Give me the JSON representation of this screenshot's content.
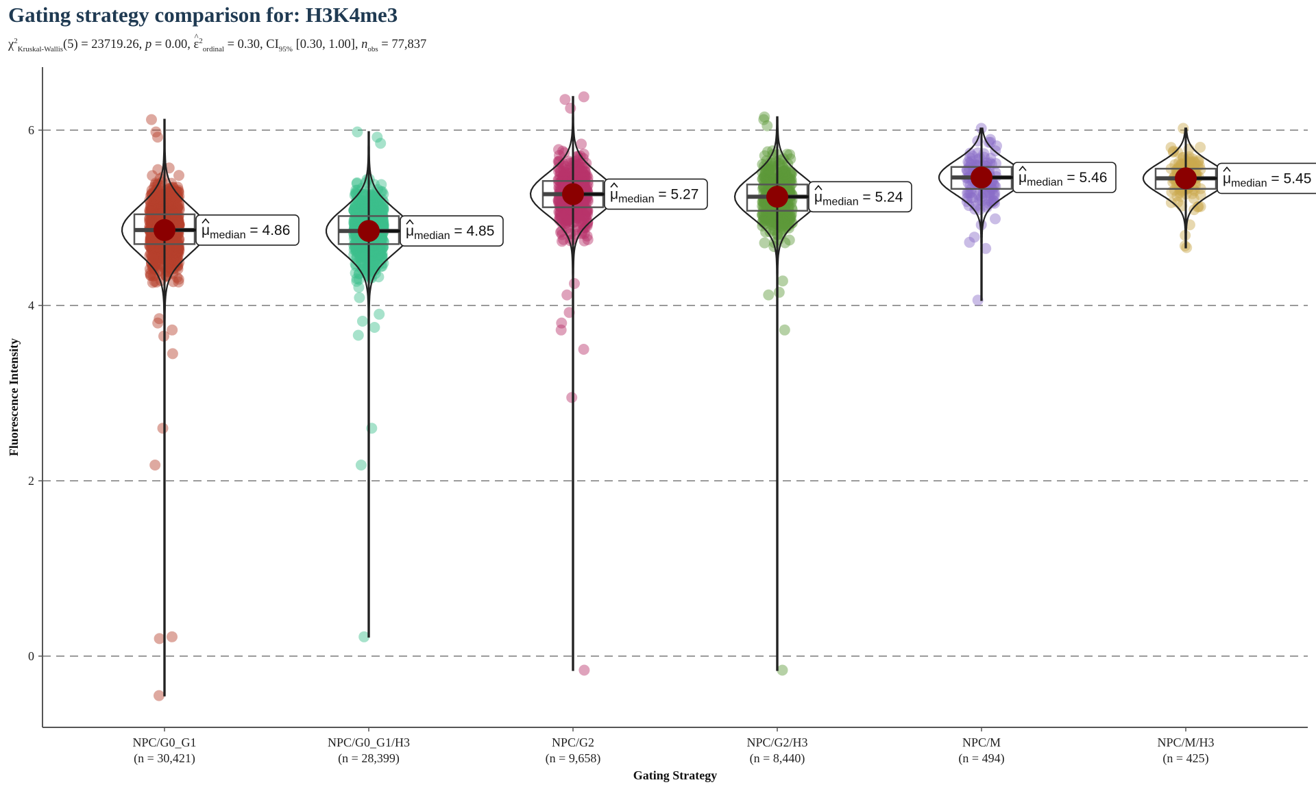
{
  "chart_data": {
    "type": "violin",
    "title": "Gating strategy comparison for: H3K4me3",
    "subtitle": {
      "stat_symbol": "χ",
      "stat_sup": "2",
      "stat_sub": "Kruskal-Wallis",
      "df": "(5) = 23719.26, ",
      "p_label": "p",
      "p_value": " = 0.00, ",
      "effect_symbol": "ε",
      "effect_sup": "2",
      "effect_sub": "ordinal",
      "effect_value": " = 0.30, CI",
      "ci_sub": "95%",
      "ci_value": " [0.30, 1.00], ",
      "n_label": "n",
      "n_sub": "obs",
      "n_value": " = 77,837"
    },
    "xlabel": "Gating Strategy",
    "ylabel": "Fluorescence Intensity",
    "ylim": [
      -1.0,
      6.7
    ],
    "yticks": [
      0,
      2,
      4,
      6
    ],
    "grid": "horizontal-dashed",
    "median_label_prefix": "μ",
    "median_label_sub": "median",
    "groups": [
      {
        "name": "NPC/G0_G1",
        "n_label": "(n = 30,421)",
        "color": "#b5412c",
        "median": 4.86,
        "median_label": " = 4.86",
        "q1": 4.7,
        "q3": 5.04,
        "whisker_low": -0.45,
        "whisker_high": 6.12,
        "core_min": 4.0,
        "core_max": 5.95,
        "outliers": [
          6.12,
          5.98,
          5.92,
          3.8,
          3.85,
          3.72,
          3.65,
          3.45,
          2.6,
          2.18,
          0.22,
          0.2,
          -0.45
        ]
      },
      {
        "name": "NPC/G0_G1/H3",
        "n_label": "(n = 28,399)",
        "color": "#3cbf8c",
        "median": 4.85,
        "median_label": " = 4.85",
        "q1": 4.7,
        "q3": 5.02,
        "whisker_low": 0.22,
        "whisker_high": 5.98,
        "core_min": 4.0,
        "core_max": 5.8,
        "outliers": [
          5.98,
          5.92,
          5.85,
          3.9,
          3.82,
          3.75,
          3.66,
          2.6,
          2.18,
          0.22
        ]
      },
      {
        "name": "NPC/G2",
        "n_label": "(n = 9,658)",
        "color": "#b8336a",
        "median": 5.27,
        "median_label": " = 5.27",
        "q1": 5.12,
        "q3": 5.42,
        "whisker_low": -0.16,
        "whisker_high": 6.38,
        "core_min": 4.4,
        "core_max": 6.15,
        "outliers": [
          6.38,
          6.35,
          6.25,
          4.25,
          4.12,
          3.92,
          3.8,
          3.72,
          3.5,
          2.95,
          -0.16
        ]
      },
      {
        "name": "NPC/G2/H3",
        "n_label": "(n = 8,440)",
        "color": "#5e9a3a",
        "median": 5.24,
        "median_label": " = 5.24",
        "q1": 5.08,
        "q3": 5.38,
        "whisker_low": -0.16,
        "whisker_high": 6.15,
        "core_min": 4.35,
        "core_max": 6.05,
        "outliers": [
          6.15,
          6.12,
          6.05,
          4.28,
          4.15,
          4.12,
          3.72,
          -0.16
        ]
      },
      {
        "name": "NPC/M",
        "n_label": "(n = 494)",
        "color": "#8a6dc8",
        "median": 5.46,
        "median_label": " = 5.46",
        "q1": 5.33,
        "q3": 5.58,
        "whisker_low": 4.06,
        "whisker_high": 6.02,
        "core_min": 4.95,
        "core_max": 5.9,
        "outliers": [
          6.02,
          4.92,
          4.78,
          4.72,
          4.65,
          4.06
        ]
      },
      {
        "name": "NPC/M/H3",
        "n_label": "(n = 425)",
        "color": "#c9a84e",
        "median": 5.45,
        "median_label": " = 5.45",
        "q1": 5.33,
        "q3": 5.56,
        "whisker_low": 4.66,
        "whisker_high": 6.02,
        "core_min": 5.0,
        "core_max": 5.88,
        "outliers": [
          6.02,
          4.92,
          4.8,
          4.68,
          4.66
        ]
      }
    ]
  }
}
